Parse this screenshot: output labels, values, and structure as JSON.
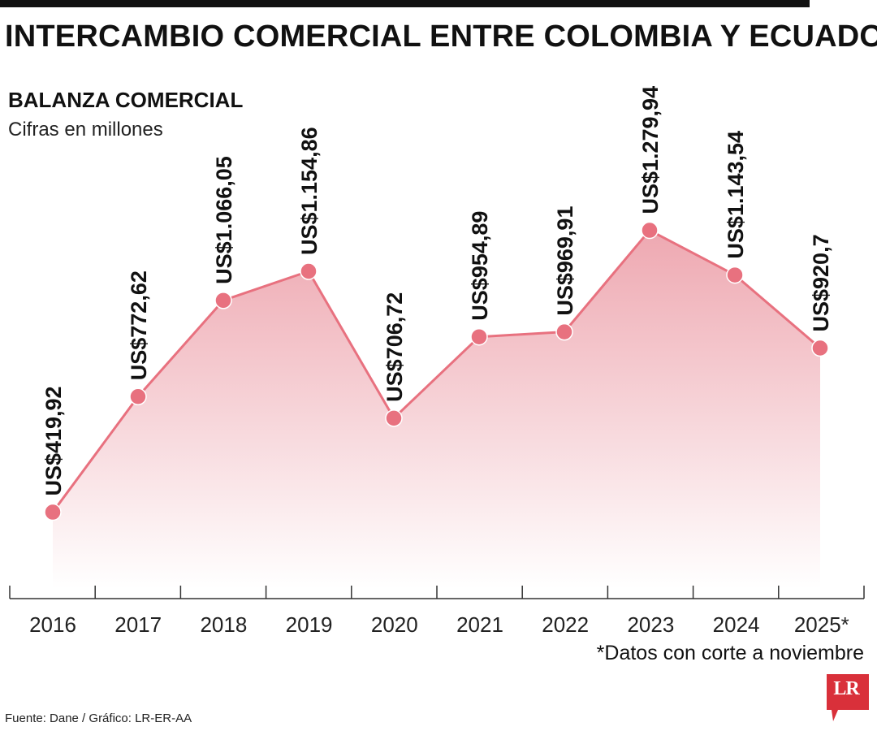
{
  "header": {
    "title": "INTERCAMBIO COMERCIAL ENTRE COLOMBIA Y ECUADOR"
  },
  "chart": {
    "title": "BALANZA COMERCIAL",
    "subtitle": "Cifras en millones",
    "note": "*Datos con corte a noviembre"
  },
  "footer": {
    "source": "Fuente: Dane / Gráfico: LR-ER-AA",
    "logo_text": "LR"
  },
  "colors": {
    "line": "#e8717f",
    "marker": "#e8717f",
    "fill_top": "#eea8b1",
    "fill_bottom": "#ffffff",
    "logo_bg": "#d9303a"
  },
  "chart_data": {
    "type": "area",
    "categories": [
      "2016",
      "2017",
      "2018",
      "2019",
      "2020",
      "2021",
      "2022",
      "2023",
      "2024",
      "2025*"
    ],
    "values": [
      419.92,
      772.62,
      1066.05,
      1154.86,
      706.72,
      954.89,
      969.91,
      1279.94,
      1143.54,
      920.7
    ],
    "data_labels": [
      "US$419,92",
      "US$772,62",
      "US$1.066,05",
      "US$1.154,86",
      "US$706,72",
      "US$954,89",
      "US$969,91",
      "US$1.279,94",
      "US$1.143,54",
      "US$920,7"
    ],
    "title": "BALANZA COMERCIAL",
    "subtitle": "Cifras en millones",
    "grid": false,
    "legend": "none"
  }
}
